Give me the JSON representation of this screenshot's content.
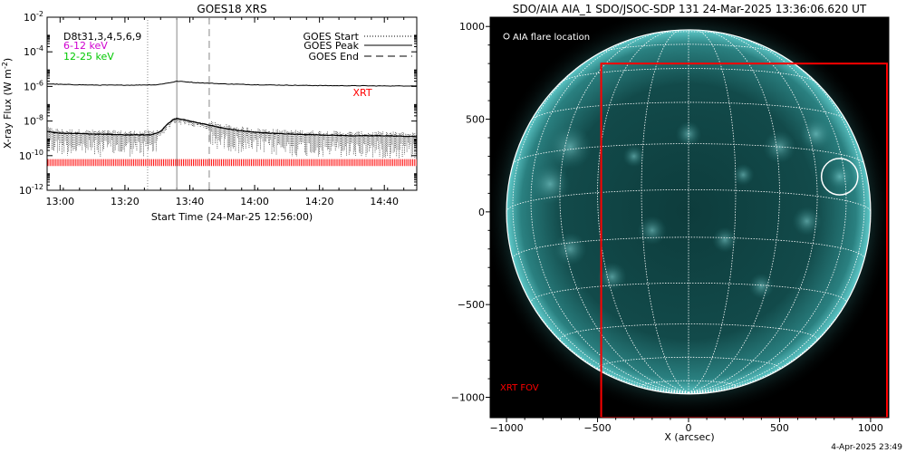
{
  "colors": {
    "background": "#ffffff",
    "xrt": "#ff0000",
    "low_energy": "#d000d0",
    "high_energy": "#00c800",
    "disk": "#0c3a3a",
    "grid": "#ffffff"
  },
  "footer_timestamp": "4-Apr-2025 23:49",
  "chart_data": [
    {
      "type": "line",
      "title": "GOES18 XRS",
      "xlabel": "Start Time (24-Mar-25 12:56:00)",
      "ylabel": "X-ray Flux (W m",
      "ylabel_sup": "-2",
      "ylabel_close": ")",
      "ylim_log10": [
        -12,
        -2
      ],
      "y_ticks": [
        {
          "base": "10",
          "exp": "-2",
          "value_log10": -2
        },
        {
          "base": "10",
          "exp": "-4",
          "value_log10": -4
        },
        {
          "base": "10",
          "exp": "-6",
          "value_log10": -6
        },
        {
          "base": "10",
          "exp": "-8",
          "value_log10": -8
        },
        {
          "base": "10",
          "exp": "-10",
          "value_log10": -10
        },
        {
          "base": "10",
          "exp": "-12",
          "value_log10": -12
        }
      ],
      "x_range_min": [
        -4,
        110
      ],
      "x_ticks": [
        {
          "label": "13:00",
          "min": 0
        },
        {
          "label": "13:20",
          "min": 20
        },
        {
          "label": "13:40",
          "min": 40
        },
        {
          "label": "14:00",
          "min": 60
        },
        {
          "label": "14:20",
          "min": 80
        },
        {
          "label": "14:40",
          "min": 100
        }
      ],
      "channel_labels": [
        {
          "text": "D8t31,3,4,5,6,9",
          "color": "#000000"
        },
        {
          "text": "6-12 keV",
          "color": "#d000d0"
        },
        {
          "text": "12-25 keV",
          "color": "#00c800"
        }
      ],
      "legend": [
        {
          "label": "GOES Start",
          "style": "dotted"
        },
        {
          "label": "GOES Peak",
          "style": "solid"
        },
        {
          "label": "GOES End",
          "style": "dashed"
        }
      ],
      "markers_min": {
        "start": 27,
        "peak": 36,
        "end": 46
      },
      "xrt_label": "XRT",
      "series": [
        {
          "channel": "long",
          "x_min": [
            -4,
            0,
            10,
            20,
            30,
            34,
            36,
            38,
            42,
            50,
            60,
            70,
            80,
            90,
            100,
            110
          ],
          "log10_flux": [
            -5.85,
            -5.88,
            -5.92,
            -5.93,
            -5.9,
            -5.78,
            -5.7,
            -5.72,
            -5.78,
            -5.85,
            -5.9,
            -5.93,
            -5.95,
            -5.96,
            -5.97,
            -5.97
          ]
        },
        {
          "channel": "short",
          "x_min": [
            -4,
            0,
            10,
            20,
            28,
            31,
            33,
            35,
            36,
            40,
            45,
            50,
            55,
            60,
            70,
            80,
            90,
            100,
            110
          ],
          "log10_flux": [
            -8.6,
            -8.7,
            -8.75,
            -8.8,
            -8.8,
            -8.6,
            -8.2,
            -7.9,
            -7.85,
            -8.0,
            -8.2,
            -8.4,
            -8.55,
            -8.65,
            -8.75,
            -8.8,
            -8.85,
            -8.85,
            -8.9
          ]
        }
      ]
    },
    {
      "type": "scatter",
      "title": "SDO/AIA AIA_1 SDO/JSOC-SDP 131 24-Mar-2025 13:36:06.620 UT",
      "xlabel": "X (arcsec)",
      "ylabel": "",
      "xlim": [
        -1090,
        1100
      ],
      "ylim": [
        -1110,
        1050
      ],
      "x_ticks": [
        -1000,
        -500,
        0,
        500,
        1000
      ],
      "y_ticks": [
        -1000,
        -500,
        0,
        500,
        1000
      ],
      "solar_radius_arcsec": 1000,
      "legend_label": "AIA flare location",
      "flare": {
        "x": 830,
        "y": 190,
        "r": 100
      },
      "xrt_fov": {
        "x0": -480,
        "x1": 1090,
        "y0": -1110,
        "y1": 800
      },
      "xrt_fov_label": "XRT FOV"
    }
  ]
}
